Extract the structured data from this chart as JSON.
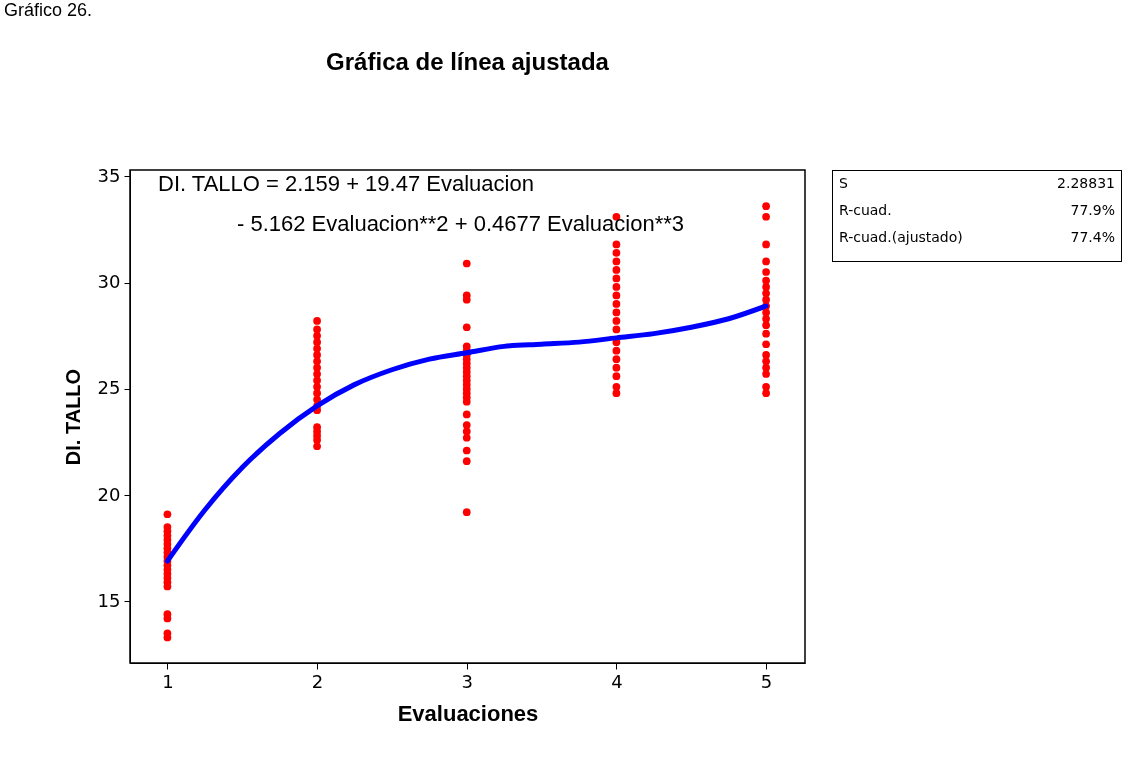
{
  "chart_data": {
    "type": "scatter",
    "title": "Gráfica de línea ajustada",
    "xlabel": "Evaluaciones",
    "ylabel": "DI. TALLO",
    "xlim": [
      0.75,
      5.26
    ],
    "ylim": [
      12.1,
      35.3
    ],
    "xticks": [
      1,
      2,
      3,
      4,
      5
    ],
    "yticks": [
      15,
      20,
      25,
      30,
      35
    ],
    "grid": false,
    "annotations": [
      "Gráfico 26.",
      "DI. TALLO =  2.159 + 19.47 Evaluacion",
      "- 5.162 Evaluacion**2 + 0.4677 Evaluacion**3",
      "S",
      "2.28831",
      "R-cuad.",
      "77.9%",
      "R-cuad.(ajustado)",
      "77.4%"
    ],
    "series": [
      {
        "color": "#ff0000",
        "marker": "circle",
        "x": [
          1,
          1,
          1,
          1,
          1,
          1,
          1,
          1,
          1,
          1,
          1,
          1,
          1,
          1,
          1,
          1,
          1,
          1,
          1,
          1,
          2,
          2,
          2,
          2,
          2,
          2,
          2,
          2,
          2,
          2,
          2,
          2,
          2,
          2,
          2,
          2,
          2,
          2,
          2,
          2,
          3,
          3,
          3,
          3,
          3,
          3,
          3,
          3,
          3,
          3,
          3,
          3,
          3,
          3,
          3,
          3,
          3,
          3,
          3,
          3,
          3,
          3,
          3,
          3,
          3,
          4,
          4,
          4,
          4,
          4,
          4,
          4,
          4,
          4,
          4,
          4,
          4,
          4,
          4,
          4,
          4,
          4,
          4,
          4,
          5,
          5,
          5,
          5,
          5,
          5,
          5,
          5,
          5,
          5,
          5,
          5,
          5,
          5,
          5,
          5,
          5,
          5,
          5,
          5,
          5
        ],
        "values": [
          19.1,
          18.5,
          18.3,
          18.1,
          17.9,
          17.7,
          17.5,
          17.3,
          17.1,
          16.9,
          16.7,
          16.5,
          16.3,
          16.1,
          15.9,
          15.7,
          14.4,
          14.2,
          13.5,
          13.3,
          28.2,
          27.8,
          27.5,
          27.2,
          26.9,
          26.6,
          26.3,
          26.0,
          25.7,
          25.4,
          25.1,
          24.8,
          24.5,
          24.2,
          24.0,
          23.2,
          23.0,
          22.8,
          22.6,
          22.3,
          30.9,
          29.4,
          29.2,
          27.9,
          27.0,
          26.8,
          26.6,
          26.4,
          26.2,
          26.0,
          25.8,
          25.6,
          25.4,
          25.2,
          25.0,
          24.8,
          24.6,
          24.4,
          23.8,
          23.3,
          23.0,
          22.7,
          22.1,
          21.6,
          19.2,
          33.1,
          31.8,
          31.4,
          31.0,
          30.6,
          30.2,
          29.8,
          29.4,
          29.0,
          28.6,
          28.2,
          27.8,
          27.2,
          26.8,
          26.4,
          26.0,
          25.6,
          25.1,
          24.8,
          33.6,
          33.1,
          31.8,
          31.0,
          30.5,
          30.1,
          29.8,
          29.5,
          29.2,
          28.9,
          28.6,
          28.3,
          28.0,
          27.6,
          27.1,
          26.6,
          26.3,
          26.0,
          25.7,
          25.1,
          24.8
        ]
      },
      {
        "type": "line",
        "color": "#0000ff",
        "line_style": "solid",
        "x": [
          1,
          1.25,
          1.5,
          1.75,
          2,
          2.25,
          2.5,
          2.75,
          3,
          3.25,
          3.5,
          3.75,
          4,
          4.25,
          4.5,
          4.75,
          5
        ],
        "values": [
          16.9,
          19.3,
          21.3,
          22.9,
          24.2,
          25.2,
          25.9,
          26.4,
          26.7,
          27.0,
          27.1,
          27.2,
          27.4,
          27.6,
          27.9,
          28.3,
          28.9
        ]
      }
    ]
  }
}
